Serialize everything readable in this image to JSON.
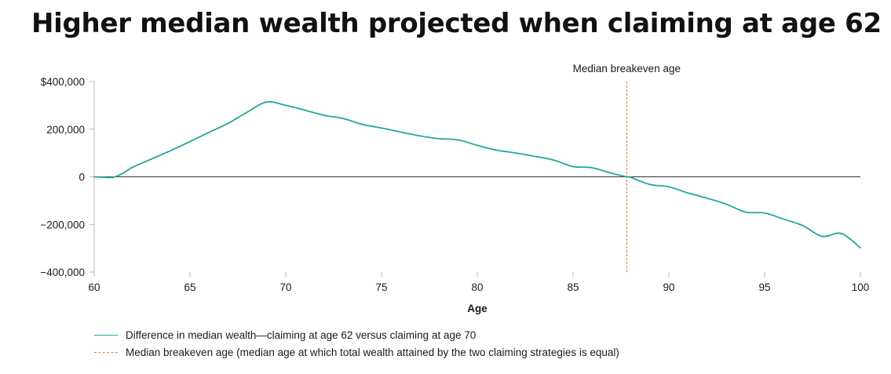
{
  "title": "Higher median wealth projected when claiming at age 62",
  "colors": {
    "line": "#21a79b",
    "breakeven": "#d98a45",
    "axis": "#333333",
    "tick": "#bbbbbb"
  },
  "chart_data": {
    "type": "line",
    "title": "Higher median wealth projected when claiming at age 62",
    "xlabel": "Age",
    "ylabel": "",
    "xlim": [
      60,
      100
    ],
    "ylim": [
      -400000,
      400000
    ],
    "x_ticks": [
      60,
      65,
      70,
      75,
      80,
      85,
      90,
      95,
      100
    ],
    "x_tick_labels": [
      "60",
      "65",
      "70",
      "75",
      "80",
      "85",
      "90",
      "95",
      "100"
    ],
    "y_ticks": [
      400000,
      200000,
      0,
      -200000,
      -400000
    ],
    "y_tick_labels": [
      "$400,000",
      "200,000",
      "0",
      "−200,000",
      "−400,000"
    ],
    "series": [
      {
        "name": "Difference in median wealth—claiming at age 62 versus claiming at age 70",
        "x": [
          60,
          60.5,
          61,
          61.5,
          62,
          63,
          64,
          65,
          66,
          67,
          68,
          69,
          70,
          71,
          72,
          73,
          74,
          75,
          76,
          77,
          78,
          79,
          80,
          81,
          82,
          83,
          84,
          85,
          86,
          87,
          87.8,
          88,
          89,
          90,
          91,
          92,
          93,
          94,
          95,
          96,
          97,
          98,
          99,
          100
        ],
        "y": [
          0,
          -2000,
          -2000,
          15000,
          40000,
          75000,
          110000,
          148000,
          187000,
          225000,
          272000,
          314000,
          300000,
          280000,
          258000,
          245000,
          220000,
          205000,
          188000,
          172000,
          160000,
          155000,
          132000,
          112000,
          100000,
          86000,
          70000,
          43000,
          38000,
          15000,
          0,
          -2000,
          -32000,
          -42000,
          -68000,
          -90000,
          -115000,
          -148000,
          -152000,
          -178000,
          -205000,
          -250000,
          -238000,
          -298000
        ]
      }
    ],
    "breakeven": {
      "age": 87.8,
      "label": "Median breakeven age"
    },
    "legend": [
      {
        "label": "Difference in median wealth—claiming at age 62 versus claiming at age 70",
        "style": "solid"
      },
      {
        "label": "Median breakeven age (median age at which total wealth attained by the two claiming strategies is equal)",
        "style": "dashed"
      }
    ],
    "legend_position": "bottom-left",
    "grid": false
  }
}
